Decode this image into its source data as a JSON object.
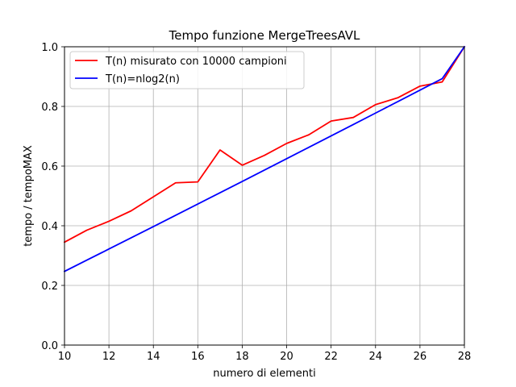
{
  "chart_data": {
    "type": "line",
    "title": "Tempo funzione MergeTreesAVL",
    "xlabel": "numero di elementi",
    "ylabel": "tempo / tempoMAX",
    "xlim": [
      10,
      28
    ],
    "ylim": [
      0.0,
      1.0
    ],
    "grid": true,
    "legend_position": "top-left",
    "x_ticks": [
      "10",
      "12",
      "14",
      "16",
      "18",
      "20",
      "22",
      "24",
      "26",
      "28"
    ],
    "y_ticks": [
      "0.0",
      "0.2",
      "0.4",
      "0.6",
      "0.8",
      "1.0"
    ],
    "x": [
      10,
      11,
      12,
      13,
      14,
      15,
      16,
      17,
      18,
      19,
      20,
      21,
      22,
      23,
      24,
      25,
      26,
      27,
      28
    ],
    "series": [
      {
        "name": "T(n) misurato con 10000 campioni",
        "color": "#ff0000",
        "values": [
          0.345,
          0.385,
          0.415,
          0.45,
          0.497,
          0.544,
          0.547,
          0.654,
          0.603,
          0.636,
          0.676,
          0.705,
          0.751,
          0.763,
          0.806,
          0.829,
          0.868,
          0.882,
          1.0
        ]
      },
      {
        "name": "T(n)=nlog2(n)",
        "color": "#0000ff",
        "values": [
          0.247,
          0.2845,
          0.322,
          0.3596,
          0.3972,
          0.4349,
          0.4728,
          0.5107,
          0.5486,
          0.5866,
          0.6247,
          0.6629,
          0.7011,
          0.7394,
          0.7777,
          0.8161,
          0.8545,
          0.893,
          1.0
        ]
      }
    ]
  }
}
